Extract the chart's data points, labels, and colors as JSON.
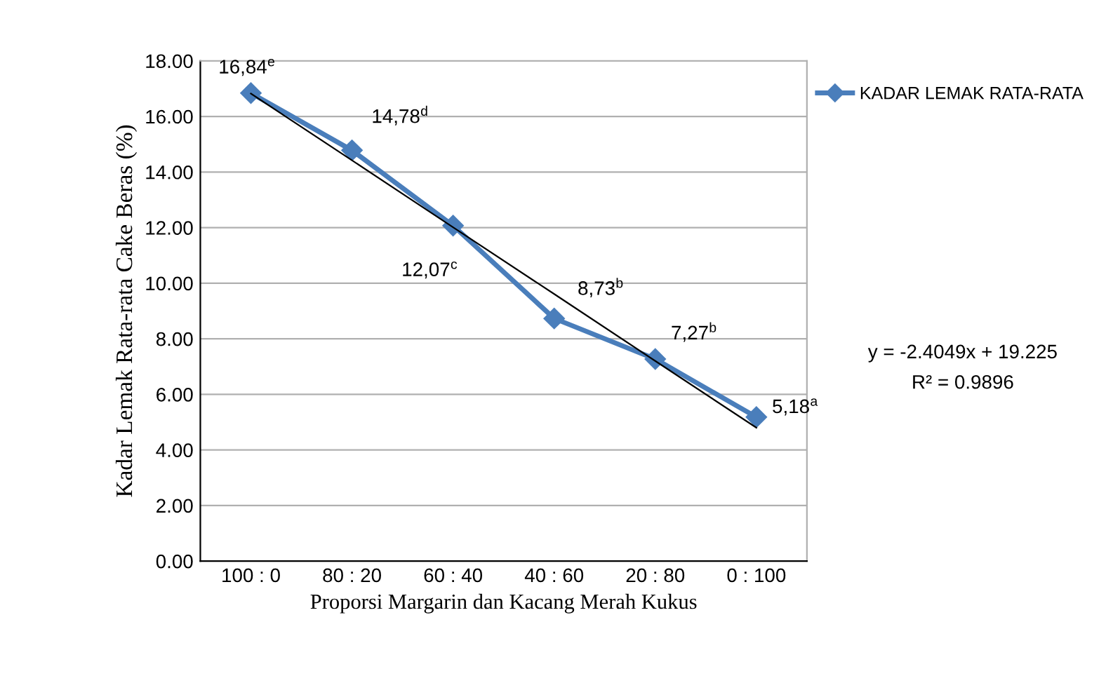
{
  "chart_data": {
    "type": "line",
    "xlabel": "Proporsi Margarin dan Kacang Merah Kukus",
    "ylabel": "Kadar Lemak Rata-rata Cake Beras (%)",
    "categories": [
      "100 : 0",
      "80 : 20",
      "60 : 40",
      "40 : 60",
      "20 : 80",
      "0 : 100"
    ],
    "series": [
      {
        "name": "KADAR LEMAK RATA-RATA",
        "color": "#4a7ebb",
        "marker": "diamond",
        "values": [
          16.84,
          14.78,
          12.07,
          8.73,
          7.27,
          5.18
        ],
        "value_labels": [
          "16,84$^{e}$",
          "14,78$^{d}$",
          "12,07$^{c}$",
          "8,73$^{b}$",
          "7,27$^{b}$",
          "5,18$^{a}$"
        ]
      },
      {
        "type": "line",
        "color": "#000000",
        "marker": "none",
        "values": [
          16.82,
          14.42,
          12.01,
          9.61,
          7.2,
          4.8
        ]
      }
    ],
    "ylim": [
      0,
      18
    ],
    "yticks": [
      {
        "value": 0,
        "label": "0.00"
      },
      {
        "value": 2,
        "label": "2.00"
      },
      {
        "value": 4,
        "label": "4.00"
      },
      {
        "value": 6,
        "label": "6.00"
      },
      {
        "value": 8,
        "label": "8.00"
      },
      {
        "value": 10,
        "label": "10.00"
      },
      {
        "value": 12,
        "label": "12.00"
      },
      {
        "value": 14,
        "label": "14.00"
      },
      {
        "value": 16,
        "label": "16.00"
      },
      {
        "value": 18,
        "label": "18.00"
      }
    ],
    "grid": "y",
    "legend": "right",
    "annotations": [
      "y = -2.4049x + 19.225",
      "R² = 0.9896"
    ]
  }
}
